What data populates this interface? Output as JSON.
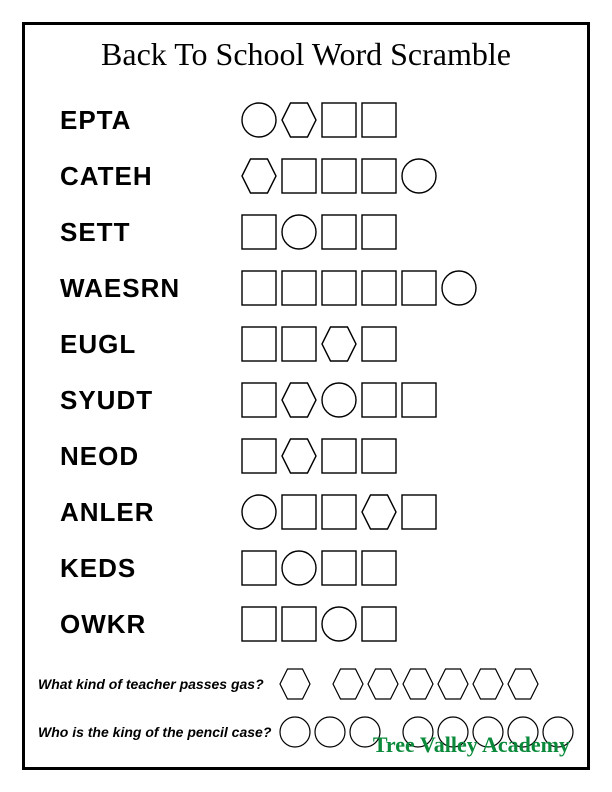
{
  "title": "Back To School Word Scramble",
  "shape_size_main": 38,
  "shape_size_riddle": 34,
  "stroke": "#000000",
  "stroke_width": 1.4,
  "riddle_stroke_width": 1.2,
  "rows": [
    {
      "word": "EPTA",
      "shapes": [
        "circle",
        "hexagon",
        "square",
        "square"
      ]
    },
    {
      "word": "CATEH",
      "shapes": [
        "hexagon",
        "square",
        "square",
        "square",
        "circle"
      ]
    },
    {
      "word": "SETT",
      "shapes": [
        "square",
        "circle",
        "square",
        "square"
      ]
    },
    {
      "word": "WAESRN",
      "shapes": [
        "square",
        "square",
        "square",
        "square",
        "square",
        "circle"
      ]
    },
    {
      "word": "EUGL",
      "shapes": [
        "square",
        "square",
        "hexagon",
        "square"
      ]
    },
    {
      "word": "SYUDT",
      "shapes": [
        "square",
        "hexagon",
        "circle",
        "square",
        "square"
      ]
    },
    {
      "word": "NEOD",
      "shapes": [
        "square",
        "hexagon",
        "square",
        "square"
      ]
    },
    {
      "word": "ANLER",
      "shapes": [
        "circle",
        "square",
        "square",
        "hexagon",
        "square"
      ]
    },
    {
      "word": "KEDS",
      "shapes": [
        "square",
        "circle",
        "square",
        "square"
      ]
    },
    {
      "word": "OWKR",
      "shapes": [
        "square",
        "square",
        "circle",
        "square"
      ]
    }
  ],
  "riddles": [
    {
      "text": "What kind of teacher passes gas?",
      "shapes": [
        "hexagon",
        "space",
        "hexagon",
        "hexagon",
        "hexagon",
        "hexagon",
        "hexagon",
        "hexagon"
      ]
    },
    {
      "text": "Who is the king of the pencil case?",
      "shapes": [
        "circle",
        "circle",
        "circle",
        "space",
        "circle",
        "circle",
        "circle",
        "circle",
        "circle"
      ]
    }
  ],
  "footer": "Tree Valley Academy",
  "footer_color": "#0a8a3a"
}
